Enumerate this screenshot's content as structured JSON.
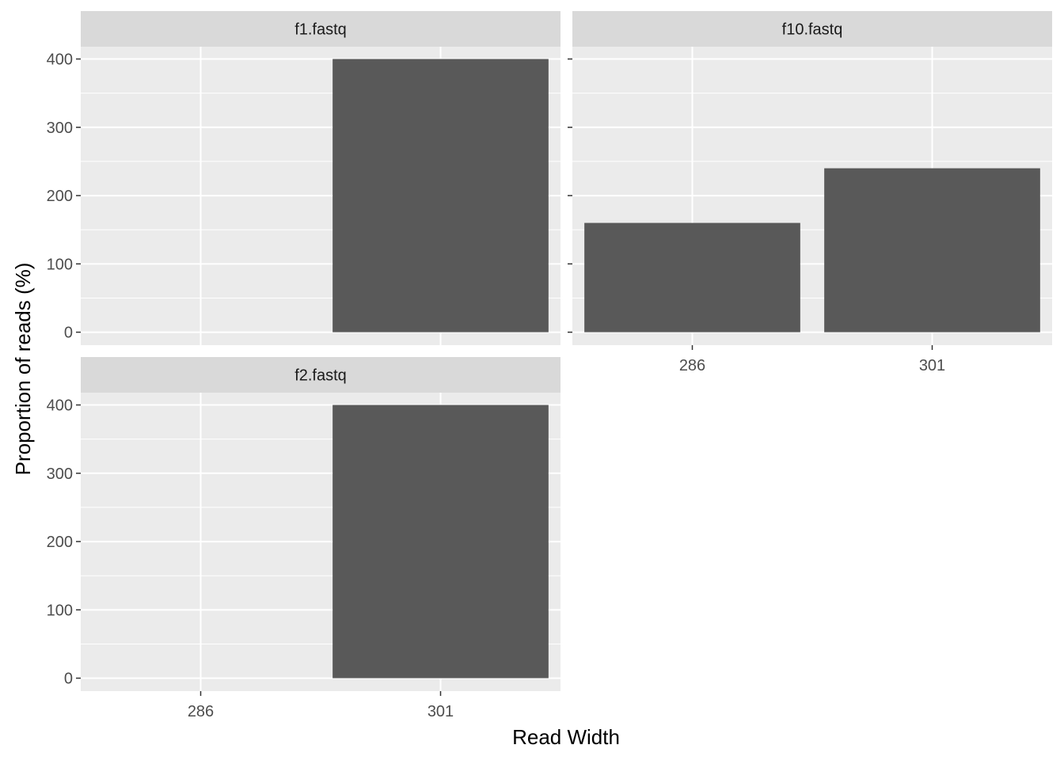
{
  "chart_data": {
    "type": "bar",
    "facet_layout": "wrap",
    "xlabel": "Read Width",
    "ylabel": "Proportion of reads (%)",
    "categories": [
      "286",
      "301"
    ],
    "y_ticks": [
      0,
      100,
      200,
      300,
      400
    ],
    "ylim": [
      -19,
      418
    ],
    "grid": true,
    "colors": {
      "bar": "#595959",
      "panel_bg": "#ebebeb",
      "strip_bg": "#d9d9d9",
      "grid": "#ffffff"
    },
    "facets": [
      {
        "label": "f1.fastq",
        "values": [
          0,
          400
        ]
      },
      {
        "label": "f10.fastq",
        "values": [
          160,
          240
        ]
      },
      {
        "label": "f2.fastq",
        "values": [
          0,
          400
        ]
      }
    ]
  }
}
